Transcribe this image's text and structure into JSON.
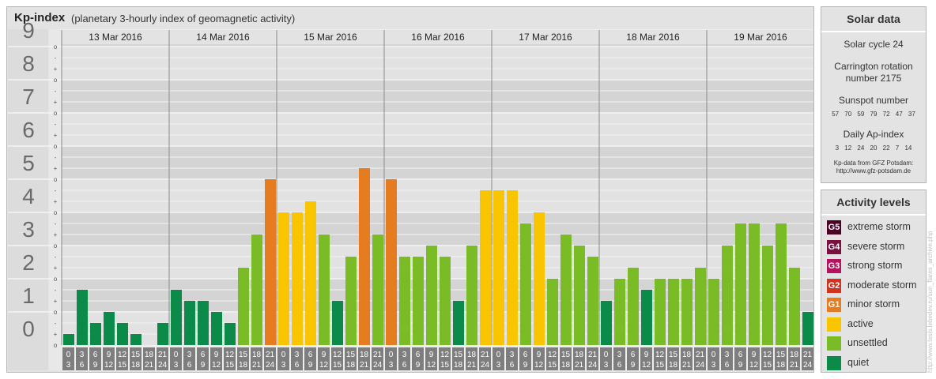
{
  "header": {
    "title": "Kp-index",
    "subtitle": "(planetary 3-hourly index of geomagnetic activity)"
  },
  "chart_data": {
    "type": "bar",
    "title": "Kp-index",
    "subtitle": "(planetary 3-hourly index of geomagnetic activity)",
    "ylim": [
      0,
      9
    ],
    "yticks": [
      "0",
      "1",
      "2",
      "3",
      "4",
      "5",
      "6",
      "7",
      "8",
      "9"
    ],
    "minor_tick_labels": [
      "+",
      "o",
      "-"
    ],
    "days": [
      "13 Mar 2016",
      "14 Mar 2016",
      "15 Mar 2016",
      "16 Mar 2016",
      "17 Mar 2016",
      "18 Mar 2016",
      "19 Mar 2016"
    ],
    "interval_labels": [
      [
        "0",
        "3"
      ],
      [
        "3",
        "6"
      ],
      [
        "6",
        "9"
      ],
      [
        "9",
        "12"
      ],
      [
        "12",
        "15"
      ],
      [
        "15",
        "18"
      ],
      [
        "18",
        "21"
      ],
      [
        "21",
        "24"
      ]
    ],
    "values": [
      0.333,
      1.667,
      0.667,
      1,
      0.667,
      0.333,
      0,
      0.667,
      1.667,
      1.333,
      1.333,
      1,
      0.667,
      2.333,
      3.333,
      5,
      4,
      4,
      4.333,
      3.333,
      1.333,
      2.667,
      5.333,
      3.333,
      5,
      2.667,
      2.667,
      3,
      2.667,
      1.333,
      3,
      4.667,
      4.667,
      4.667,
      3.667,
      4,
      2,
      3.333,
      3,
      2.667,
      1.333,
      2,
      2.333,
      1.667,
      2,
      2,
      2,
      2.333,
      2,
      3,
      3.667,
      3.667,
      3,
      3.667,
      2.333,
      1
    ],
    "grid": true
  },
  "solar": {
    "heading": "Solar data",
    "cycle": "Solar cycle 24",
    "carrington_line1": "Carrington rotation",
    "carrington_line2": "number 2175",
    "sunspot_label": "Sunspot number",
    "sunspot_values": "57 70 59 79 72 47 37",
    "ap_label": "Daily Ap-index",
    "ap_values": "3 12 24 20 22 7 14",
    "source_line1": "Kp-data from GFZ Potsdam:",
    "source_line2": "http://www.gfz-potsdam.de"
  },
  "activity": {
    "heading": "Activity levels",
    "levels": [
      {
        "code": "G5",
        "label": "extreme storm",
        "color": "#4d0026"
      },
      {
        "code": "G4",
        "label": "severe storm",
        "color": "#7a1040"
      },
      {
        "code": "G3",
        "label": "strong storm",
        "color": "#b5135e"
      },
      {
        "code": "G2",
        "label": "moderate storm",
        "color": "#cf3421"
      },
      {
        "code": "G1",
        "label": "minor storm",
        "color": "#e57c20"
      },
      {
        "code": "",
        "label": "active",
        "color": "#f9c400"
      },
      {
        "code": "",
        "label": "unsettled",
        "color": "#79bc25"
      },
      {
        "code": "",
        "label": "quiet",
        "color": "#0b8a49"
      }
    ]
  },
  "watermark": "http://www.tesis.lebedev.ru/sun_flares_archive.php"
}
